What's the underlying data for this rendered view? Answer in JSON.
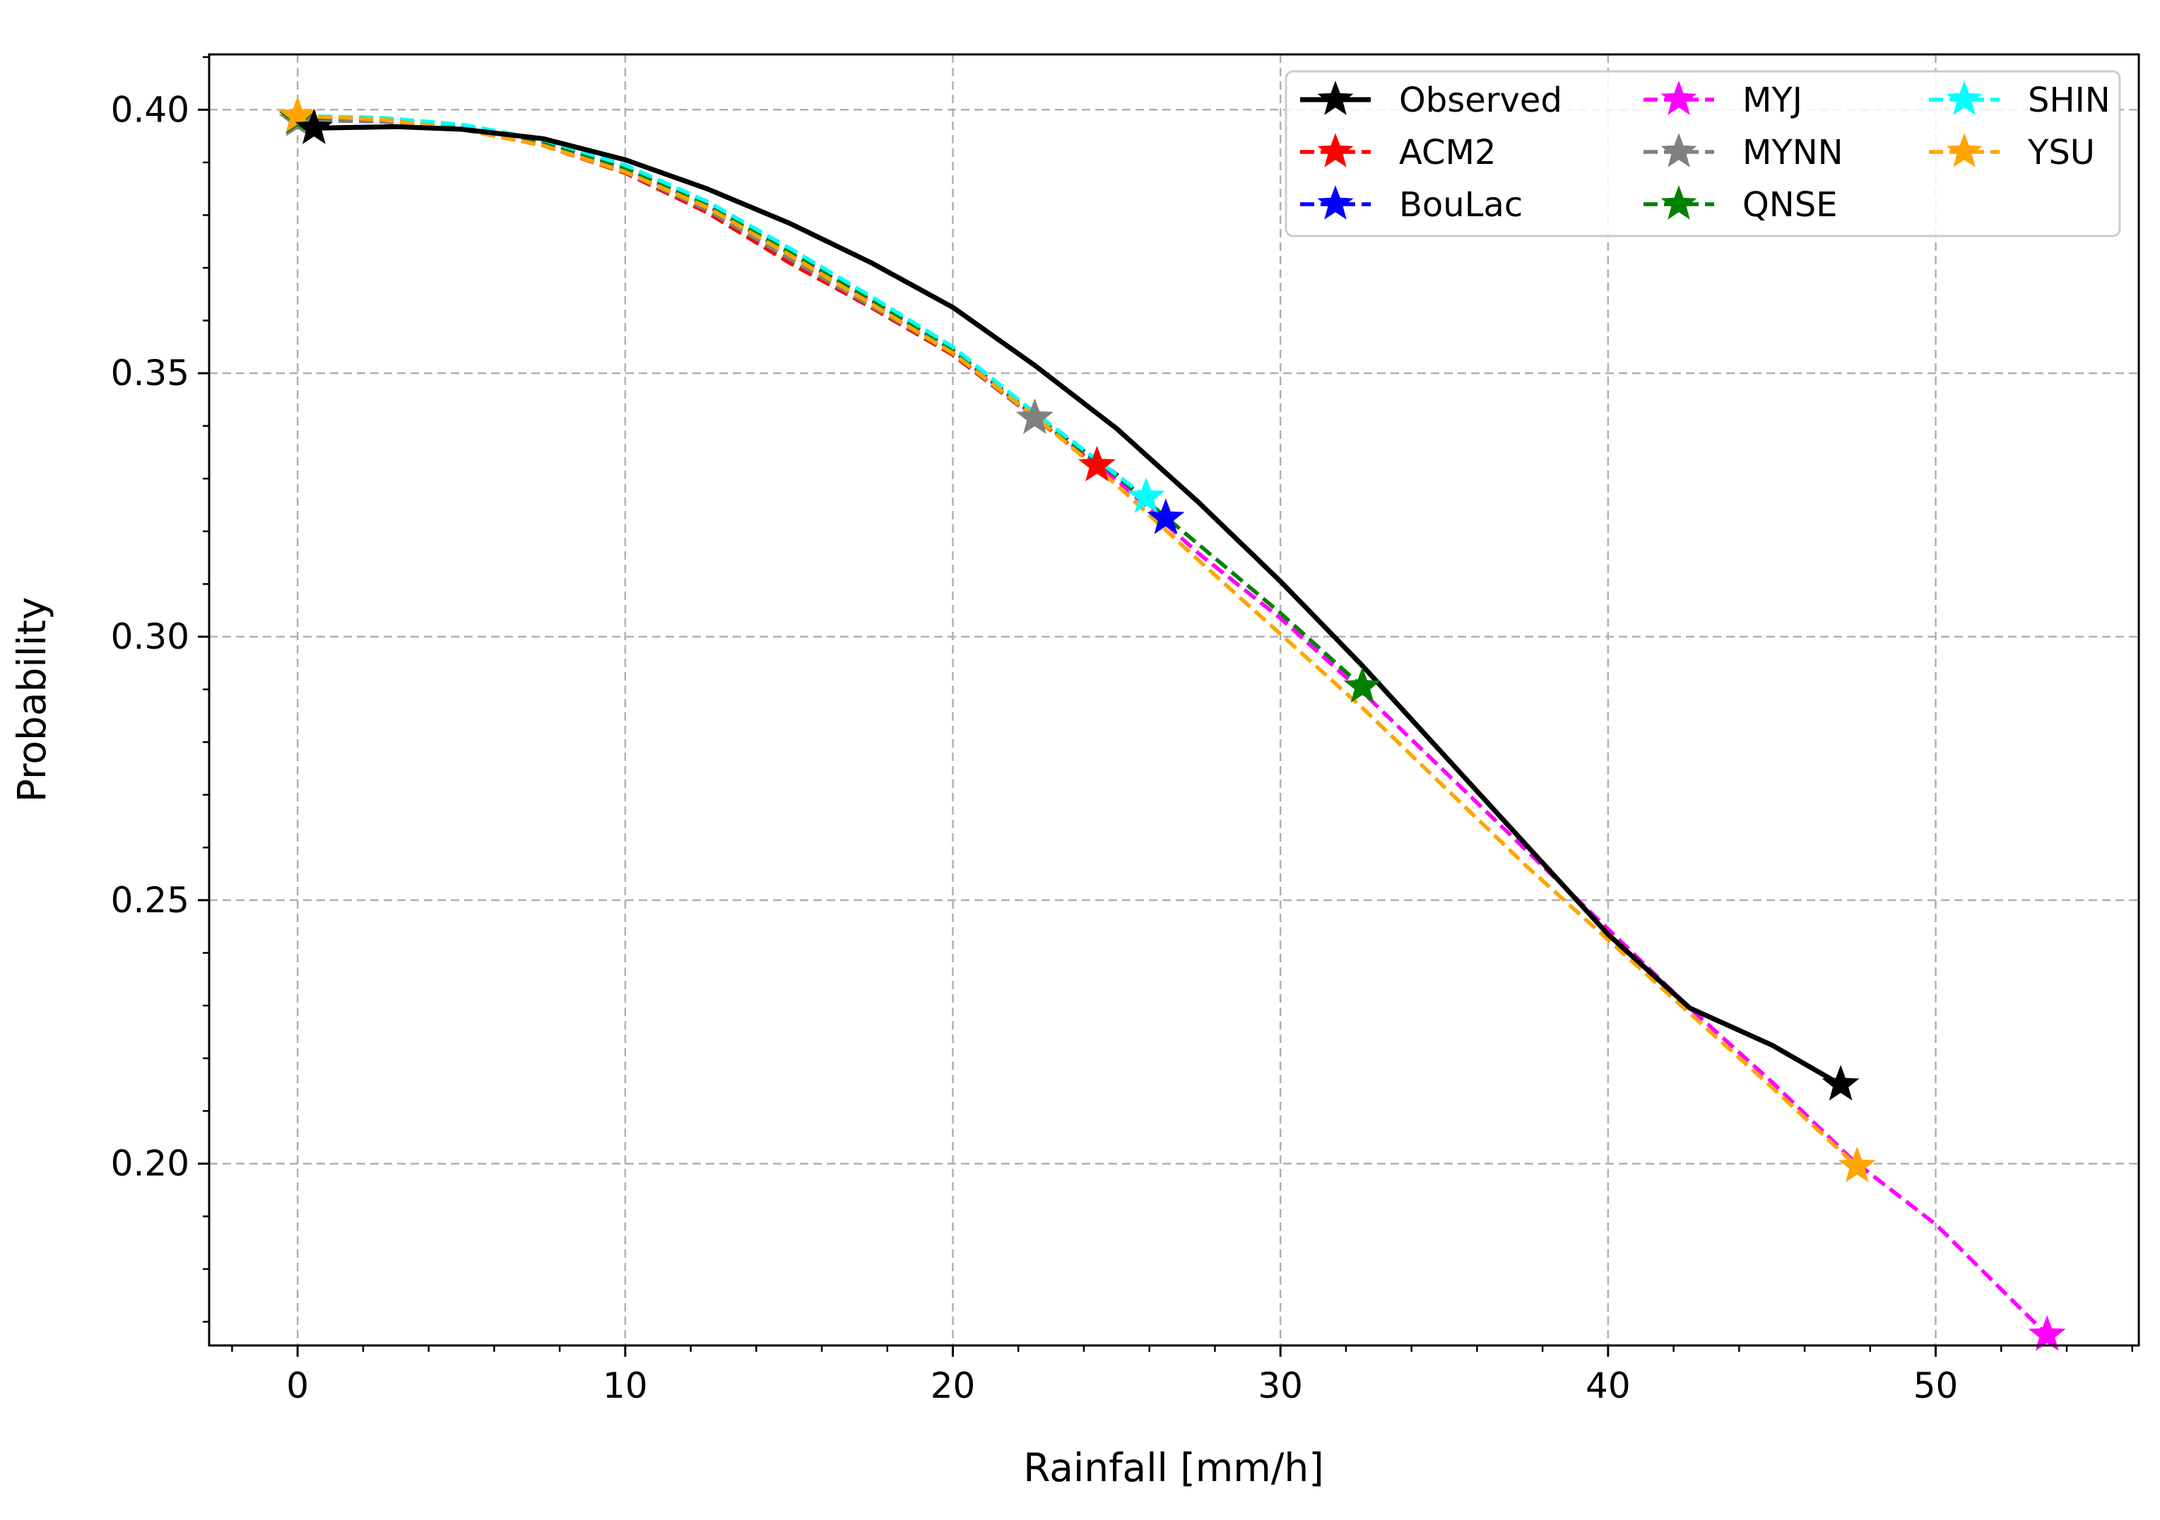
{
  "chart_data": {
    "type": "line",
    "title": "",
    "xlabel": "Rainfall [mm/h]",
    "ylabel": "Probability",
    "xlim": [
      -2.7,
      56.2
    ],
    "ylim": [
      0.1655,
      0.4105
    ],
    "xticks": [
      0,
      10,
      20,
      30,
      40,
      50
    ],
    "xtick_labels": [
      "0",
      "10",
      "20",
      "30",
      "40",
      "50"
    ],
    "x_minor_step": 2,
    "yticks": [
      0.2,
      0.25,
      0.3,
      0.35,
      0.4
    ],
    "ytick_labels": [
      "0.20",
      "0.25",
      "0.30",
      "0.35",
      "0.40"
    ],
    "y_minor_step": 0.01,
    "grid": true,
    "legend_location": "top-right",
    "series": [
      {
        "name": "Observed",
        "color": "#000000",
        "style": "solid",
        "x": [
          0.5,
          3,
          5,
          7.5,
          10,
          12.5,
          15,
          17.5,
          20,
          22.5,
          25,
          27.5,
          30,
          32.5,
          35,
          37.5,
          40,
          42.5,
          45,
          47.1
        ],
        "y": [
          0.3965,
          0.3968,
          0.3963,
          0.3945,
          0.3905,
          0.385,
          0.3785,
          0.371,
          0.3625,
          0.3515,
          0.3395,
          0.3255,
          0.3105,
          0.2945,
          0.2775,
          0.2605,
          0.2435,
          0.2295,
          0.2225,
          0.215
        ]
      },
      {
        "name": "ACM2",
        "color": "#ff0000",
        "style": "dashed",
        "x": [
          0,
          2.5,
          5,
          7.5,
          10,
          12.5,
          15,
          17.5,
          20,
          22.5,
          24.4
        ],
        "y": [
          0.398,
          0.3978,
          0.3963,
          0.3932,
          0.388,
          0.3805,
          0.371,
          0.3625,
          0.3535,
          0.3415,
          0.3325
        ]
      },
      {
        "name": "BouLac",
        "color": "#0000ff",
        "style": "dashed",
        "x": [
          0,
          2.5,
          5,
          7.5,
          10,
          12.5,
          15,
          17.5,
          20,
          22.5,
          25,
          26.5
        ],
        "y": [
          0.3985,
          0.3982,
          0.3968,
          0.3938,
          0.3888,
          0.3818,
          0.3728,
          0.3638,
          0.3543,
          0.3418,
          0.3308,
          0.3225
        ]
      },
      {
        "name": "MYJ",
        "color": "#ff00ff",
        "style": "dashed",
        "x": [
          0,
          2.5,
          5,
          7.5,
          10,
          12.5,
          15,
          17.5,
          20,
          22.5,
          25,
          27.5,
          30,
          32.5,
          35,
          37.5,
          40,
          42.5,
          45,
          47.5,
          50,
          53.4
        ],
        "y": [
          0.3985,
          0.3982,
          0.3968,
          0.3938,
          0.3888,
          0.3818,
          0.3728,
          0.3638,
          0.3543,
          0.3418,
          0.3298,
          0.3158,
          0.3035,
          0.2895,
          0.2745,
          0.2595,
          0.2445,
          0.2295,
          0.2155,
          0.2005,
          0.1885,
          0.1675
        ]
      },
      {
        "name": "MYNN",
        "color": "#808080",
        "style": "dashed",
        "x": [
          0,
          2.5,
          5,
          7.5,
          10,
          12.5,
          15,
          17.5,
          20,
          22.5
        ],
        "y": [
          0.398,
          0.3978,
          0.3963,
          0.3932,
          0.3882,
          0.381,
          0.3718,
          0.3628,
          0.3538,
          0.3415
        ]
      },
      {
        "name": "QNSE",
        "color": "#008000",
        "style": "dashed",
        "x": [
          0,
          2.5,
          5,
          7.5,
          10,
          12.5,
          15,
          17.5,
          20,
          22.5,
          25,
          27.5,
          30,
          32.5
        ],
        "y": [
          0.3985,
          0.3983,
          0.397,
          0.394,
          0.389,
          0.382,
          0.373,
          0.364,
          0.3545,
          0.342,
          0.3305,
          0.3175,
          0.3045,
          0.2905
        ]
      },
      {
        "name": "SHIN",
        "color": "#00ffff",
        "style": "dashed",
        "x": [
          0,
          2.5,
          5,
          7.5,
          10,
          12.5,
          15,
          17.5,
          20,
          22.5,
          25.9
        ],
        "y": [
          0.3988,
          0.3985,
          0.3972,
          0.3943,
          0.3895,
          0.3826,
          0.3738,
          0.3646,
          0.355,
          0.3425,
          0.3265
        ]
      },
      {
        "name": "YSU",
        "color": "#ffa500",
        "style": "dashed",
        "x": [
          0,
          2.5,
          5,
          7.5,
          10,
          12.5,
          15,
          17.5,
          20,
          22.5,
          25,
          27.5,
          30,
          32.5,
          35,
          37.5,
          40,
          42.5,
          45,
          47.6
        ],
        "y": [
          0.3988,
          0.3982,
          0.3963,
          0.3932,
          0.3882,
          0.3815,
          0.3725,
          0.3632,
          0.3538,
          0.3418,
          0.3288,
          0.3145,
          0.3005,
          0.2865,
          0.2715,
          0.2565,
          0.2425,
          0.2285,
          0.2145,
          0.1995
        ]
      }
    ]
  }
}
